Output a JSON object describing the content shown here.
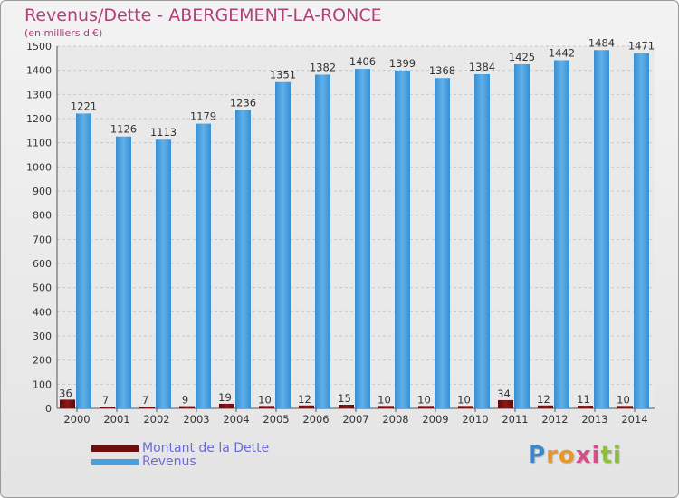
{
  "chart_data": {
    "type": "bar",
    "title": "Revenus/Dette - ABERGEMENT-LA-RONCE",
    "subtitle": "(en milliers d'€)",
    "categories": [
      "2000",
      "2001",
      "2002",
      "2003",
      "2004",
      "2005",
      "2006",
      "2007",
      "2008",
      "2009",
      "2010",
      "2011",
      "2012",
      "2013",
      "2014"
    ],
    "series": [
      {
        "name": "Montant de la Dette",
        "color": "#6b0e10",
        "values": [
          36,
          7,
          7,
          9,
          19,
          10,
          12,
          15,
          10,
          10,
          10,
          34,
          12,
          11,
          10
        ]
      },
      {
        "name": "Revenus",
        "color": "#4aa0de",
        "values": [
          1221,
          1126,
          1113,
          1179,
          1236,
          1351,
          1382,
          1406,
          1399,
          1368,
          1384,
          1425,
          1442,
          1484,
          1471
        ]
      }
    ],
    "ylim": [
      0,
      1500
    ],
    "yticks": [
      0,
      100,
      200,
      300,
      400,
      500,
      600,
      700,
      800,
      900,
      1000,
      1100,
      1200,
      1300,
      1400,
      1500
    ],
    "grid": true,
    "legend_position": "bottom-left",
    "xlabel": "",
    "ylabel": ""
  },
  "logo": {
    "letters": [
      "P",
      "r",
      "o",
      "x",
      "i",
      "t",
      "i"
    ],
    "colors": [
      "#3d87c8",
      "#e6972b",
      "#e6972b",
      "#d64d8a",
      "#d64d8a",
      "#8dbf3a",
      "#8dbf3a"
    ]
  }
}
